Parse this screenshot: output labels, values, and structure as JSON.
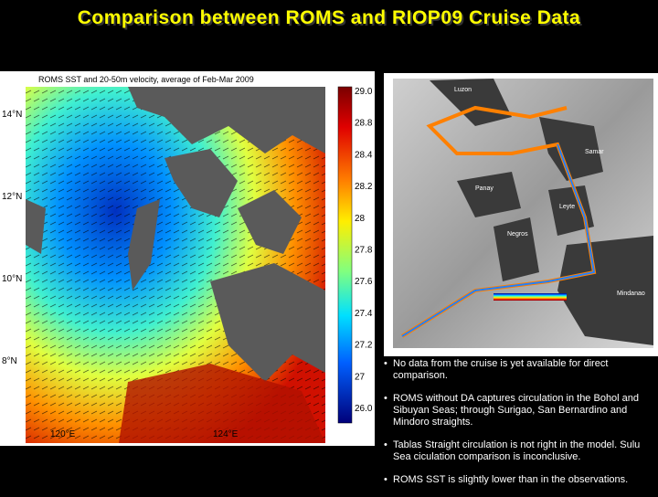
{
  "title": "Comparison between ROMS and RIOP09 Cruise Data",
  "left_figure": {
    "caption": "ROMS SST and 20-50m velocity, average of Feb-Mar 2009",
    "colorbar_labels": [
      "29.0",
      "28.8",
      "28.4",
      "28.2",
      "28",
      "27.8",
      "27.6",
      "27.4",
      "27.2",
      "27",
      "26.0"
    ],
    "lat_labels": [
      "14°N",
      "12°N",
      "10°N",
      "8°N"
    ],
    "lon_labels": [
      "120°E",
      "124°E"
    ]
  },
  "right_figure": {
    "place_labels": [
      "Luzon",
      "Samar",
      "Panay",
      "Leyte",
      "Negros",
      "Mindanao"
    ]
  },
  "bullets": [
    "No data from the cruise is yet available for direct comparison.",
    "ROMS without DA captures circulation in the Bohol and Sibuyan Seas; through Surigao, San Bernardino and Mindoro straights.",
    "Tablas Straight circulation is not right in the model. Sulu Sea ciculation comparison is inconclusive.",
    "ROMS SST is slightly lower than in the observations."
  ]
}
